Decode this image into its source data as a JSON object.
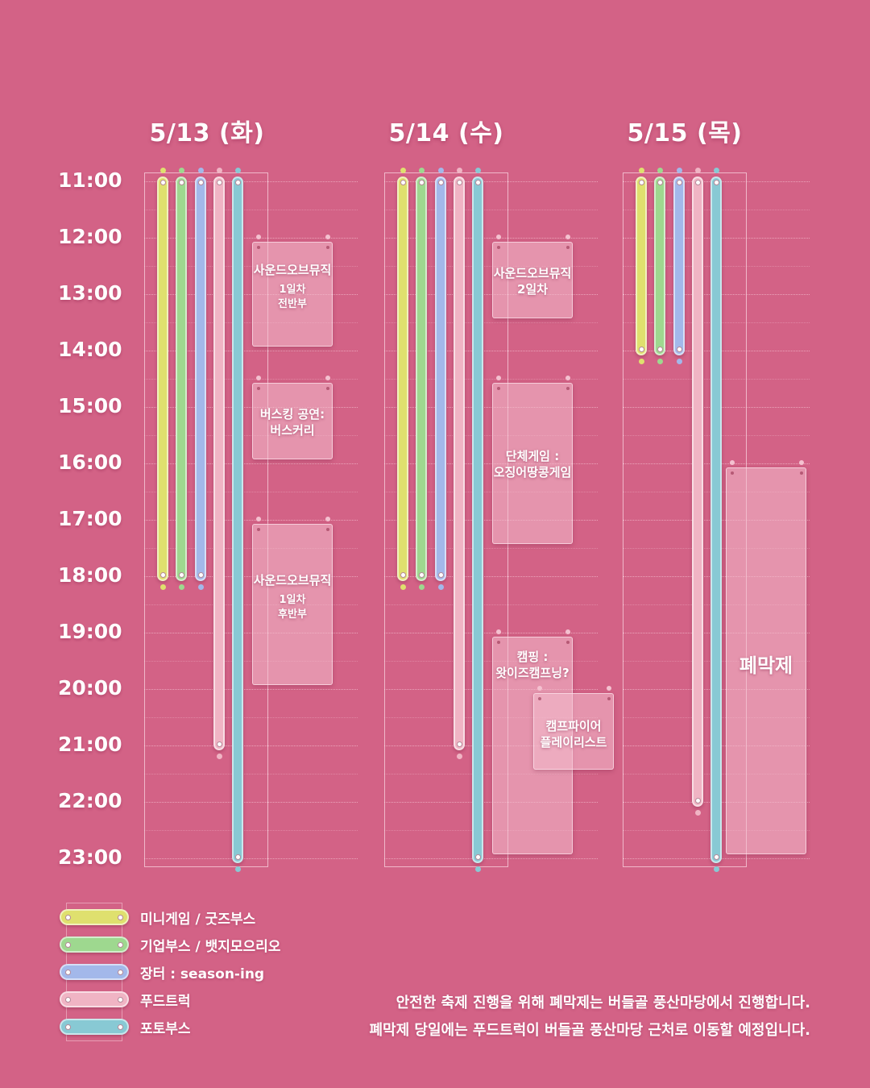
{
  "colors": {
    "background": "#d36286",
    "mini_game": "#dfe06e",
    "company_booth": "#9ed88f",
    "market": "#a3b8ea",
    "food_truck": "#f0b4c4",
    "photo_booth": "#88c9d4"
  },
  "days": [
    {
      "label": "5/13 (화)"
    },
    {
      "label": "5/14 (수)"
    },
    {
      "label": "5/15 (목)"
    }
  ],
  "time_labels": [
    "11:00",
    "12:00",
    "13:00",
    "14:00",
    "15:00",
    "16:00",
    "17:00",
    "18:00",
    "19:00",
    "20:00",
    "21:00",
    "22:00",
    "23:00"
  ],
  "schedule": {
    "day1": {
      "tracks": [
        {
          "name": "미니게임 / 굿즈부스",
          "start": "11:00",
          "end": "18:00"
        },
        {
          "name": "기업부스 / 뱃지모으리오",
          "start": "11:00",
          "end": "18:00"
        },
        {
          "name": "장터 : season-ing",
          "start": "11:00",
          "end": "18:00"
        },
        {
          "name": "푸드트럭",
          "start": "11:00",
          "end": "21:00"
        },
        {
          "name": "포토부스",
          "start": "11:00",
          "end": "23:00"
        }
      ],
      "events": [
        {
          "title": "사운드오브뮤직",
          "sub1": "1일차",
          "sub2": "전반부",
          "start": "12:00",
          "end": "14:00"
        },
        {
          "title": "버스킹 공연:",
          "sub1": "버스커리",
          "start": "14:30",
          "end": "16:00"
        },
        {
          "title": "사운드오브뮤직",
          "sub1": "1일차",
          "sub2": "후반부",
          "start": "17:00",
          "end": "20:00"
        }
      ]
    },
    "day2": {
      "tracks": [
        {
          "name": "미니게임 / 굿즈부스",
          "start": "11:00",
          "end": "18:00"
        },
        {
          "name": "기업부스 / 뱃지모으리오",
          "start": "11:00",
          "end": "18:00"
        },
        {
          "name": "장터 : season-ing",
          "start": "11:00",
          "end": "18:00"
        },
        {
          "name": "푸드트럭",
          "start": "11:00",
          "end": "21:00"
        },
        {
          "name": "포토부스",
          "start": "11:00",
          "end": "23:00"
        }
      ],
      "events": [
        {
          "title": "사운드오브뮤직",
          "sub1": "2일차",
          "start": "12:00",
          "end": "13:30"
        },
        {
          "title": "단체게임 :",
          "sub1": "오징어땅콩게임",
          "start": "14:30",
          "end": "17:30"
        },
        {
          "title": "캠핑 :",
          "sub1": "왓이즈캠프닝?",
          "start": "19:00",
          "end": "23:00"
        },
        {
          "title": "캠프파이어",
          "sub1": "플레이리스트",
          "start": "20:00",
          "end": "21:30"
        }
      ]
    },
    "day3": {
      "tracks": [
        {
          "name": "미니게임 / 굿즈부스",
          "start": "11:00",
          "end": "14:00"
        },
        {
          "name": "기업부스 / 뱃지모으리오",
          "start": "11:00",
          "end": "14:00"
        },
        {
          "name": "장터 : season-ing",
          "start": "11:00",
          "end": "14:00"
        },
        {
          "name": "푸드트럭",
          "start": "11:00",
          "end": "22:00"
        },
        {
          "name": "포토부스",
          "start": "11:00",
          "end": "23:00"
        }
      ],
      "events": [
        {
          "title": "폐막제",
          "start": "16:00",
          "end": "23:00"
        }
      ]
    }
  },
  "legend": [
    {
      "label": "미니게임 / 굿즈부스",
      "color": "#dfe06e"
    },
    {
      "label": "기업부스 / 뱃지모으리오",
      "color": "#9ed88f"
    },
    {
      "label": "장터 : season-ing",
      "color": "#a3b8ea"
    },
    {
      "label": "푸드트럭",
      "color": "#f0b4c4"
    },
    {
      "label": "포토부스",
      "color": "#88c9d4"
    }
  ],
  "notice": {
    "line1": "안전한 축제 진행을 위해 폐막제는 버들골 풍산마당에서 진행합니다.",
    "line2": "폐막제 당일에는 푸드트럭이 버들골 풍산마당 근처로 이동할 예정입니다."
  }
}
